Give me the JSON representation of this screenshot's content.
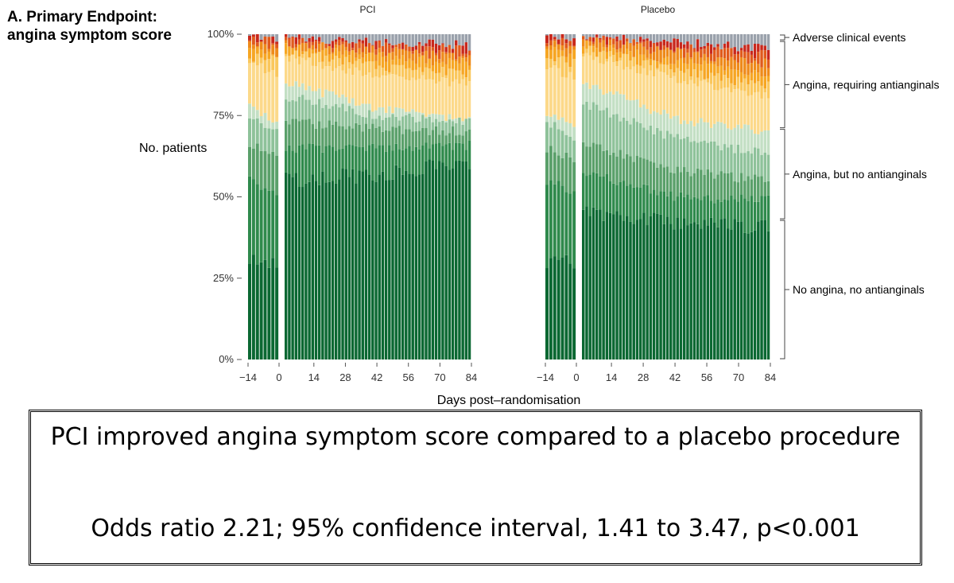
{
  "panel": {
    "title_line1": "A.  Primary Endpoint:",
    "title_line2": "angina symptom score"
  },
  "chart_data": {
    "type": "bar",
    "stacked": true,
    "ylabel": "No. patients",
    "xlabel": "Days post–randomisation",
    "ylim": [
      0,
      100
    ],
    "yticks": [
      "0%",
      "25%",
      "50%",
      "75%",
      "100%"
    ],
    "ytick_values": [
      0,
      25,
      50,
      75,
      100
    ],
    "xticks": [
      "−14",
      "0",
      "14",
      "28",
      "42",
      "56",
      "70",
      "84"
    ],
    "xtick_values": [
      -14,
      0,
      14,
      28,
      42,
      56,
      70,
      84
    ],
    "pre_days": [
      -14,
      0
    ],
    "post_days": [
      1,
      84
    ],
    "category_groups": [
      {
        "label": "Adverse clinical events",
        "from": 98,
        "to": 100
      },
      {
        "label": "Angina, requiring antianginals",
        "from": 71,
        "to": 98
      },
      {
        "label": "Angina, but no antianginals",
        "from": 43,
        "to": 71
      },
      {
        "label": "No angina, no antianginals",
        "from": 0,
        "to": 43
      }
    ],
    "layer_colors": [
      "#0b6832",
      "#2f8a4c",
      "#5aa06a",
      "#8ec29a",
      "#c3dfc4",
      "#fcd98a",
      "#fac75c",
      "#f6a623",
      "#ee8a1a",
      "#e05a1c",
      "#c8281c",
      "#9aa1ab"
    ],
    "panels": [
      {
        "name": "PCI",
        "pre_cumulative": [
          [
            32,
            55,
            66,
            75,
            78,
            91,
            93,
            95,
            97,
            98,
            99,
            100
          ],
          [
            29,
            51,
            63,
            70,
            72,
            88,
            92,
            94,
            96,
            98,
            99,
            100
          ]
        ],
        "post_cumulative": [
          [
            55,
            65,
            73,
            81,
            85,
            93,
            95,
            96,
            97,
            98,
            99,
            100
          ],
          [
            57,
            65,
            71,
            75,
            77,
            87,
            90,
            93,
            95,
            96.5,
            97.5,
            100
          ],
          [
            61,
            66,
            70,
            73,
            74,
            85,
            88,
            91,
            93,
            95,
            96.5,
            100
          ]
        ]
      },
      {
        "name": "Placebo",
        "pre_cumulative": [
          [
            30,
            55,
            65,
            73,
            76,
            90,
            93,
            95,
            97,
            98,
            99,
            100
          ],
          [
            30,
            52,
            62,
            68,
            71,
            87,
            91,
            94,
            96,
            97.5,
            99,
            100
          ]
        ],
        "post_cumulative": [
          [
            45,
            58,
            67,
            79,
            85,
            94,
            95.5,
            97,
            98,
            99,
            99.5,
            100
          ],
          [
            42,
            50,
            58,
            68,
            74,
            86,
            89,
            92,
            94.5,
            96,
            97.5,
            100
          ],
          [
            41,
            49,
            55,
            63,
            70,
            81,
            84,
            88,
            91,
            93.5,
            95.5,
            100
          ]
        ]
      }
    ]
  },
  "conclusion": {
    "statement": "PCI improved angina symptom score compared to a placebo procedure",
    "stats": "Odds ratio 2.21; 95% confidence interval, 1.41 to 3.47, p<0.001"
  }
}
